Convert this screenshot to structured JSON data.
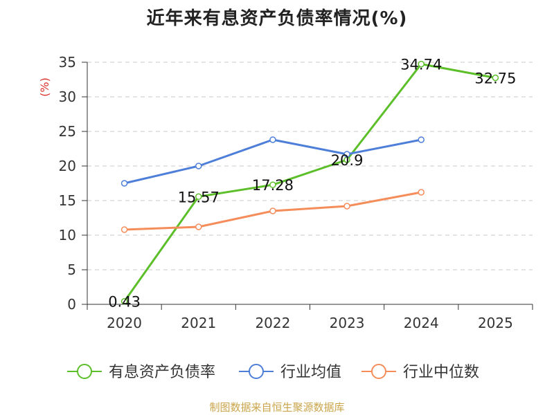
{
  "title": "近年来有息资产负债率情况(%)",
  "footer": "制图数据来自恒生聚源数据库",
  "chart_data": {
    "type": "line",
    "title": "近年来有息资产负债率情况(%)",
    "ylabel": "(%)",
    "ylim": [
      0,
      35
    ],
    "yticks": [
      0,
      5,
      10,
      15,
      20,
      25,
      30,
      35
    ],
    "categories": [
      "2020",
      "2021",
      "2022",
      "2023",
      "2024",
      "2025"
    ],
    "grid": true,
    "legend_position": "bottom",
    "series": [
      {
        "name": "有息资产负债率",
        "color": "#5cbf2a",
        "values": [
          0.43,
          15.57,
          17.28,
          20.9,
          34.74,
          32.75
        ],
        "labels": [
          "0.43",
          "15.57",
          "17.28",
          "20.9",
          "34.74",
          "32.75"
        ]
      },
      {
        "name": "行业均值",
        "color": "#4e7fd8",
        "values": [
          17.5,
          20.0,
          23.8,
          21.7,
          23.8,
          null
        ]
      },
      {
        "name": "行业中位数",
        "color": "#f58d5a",
        "values": [
          10.8,
          11.2,
          13.5,
          14.2,
          16.2,
          null
        ]
      }
    ]
  }
}
